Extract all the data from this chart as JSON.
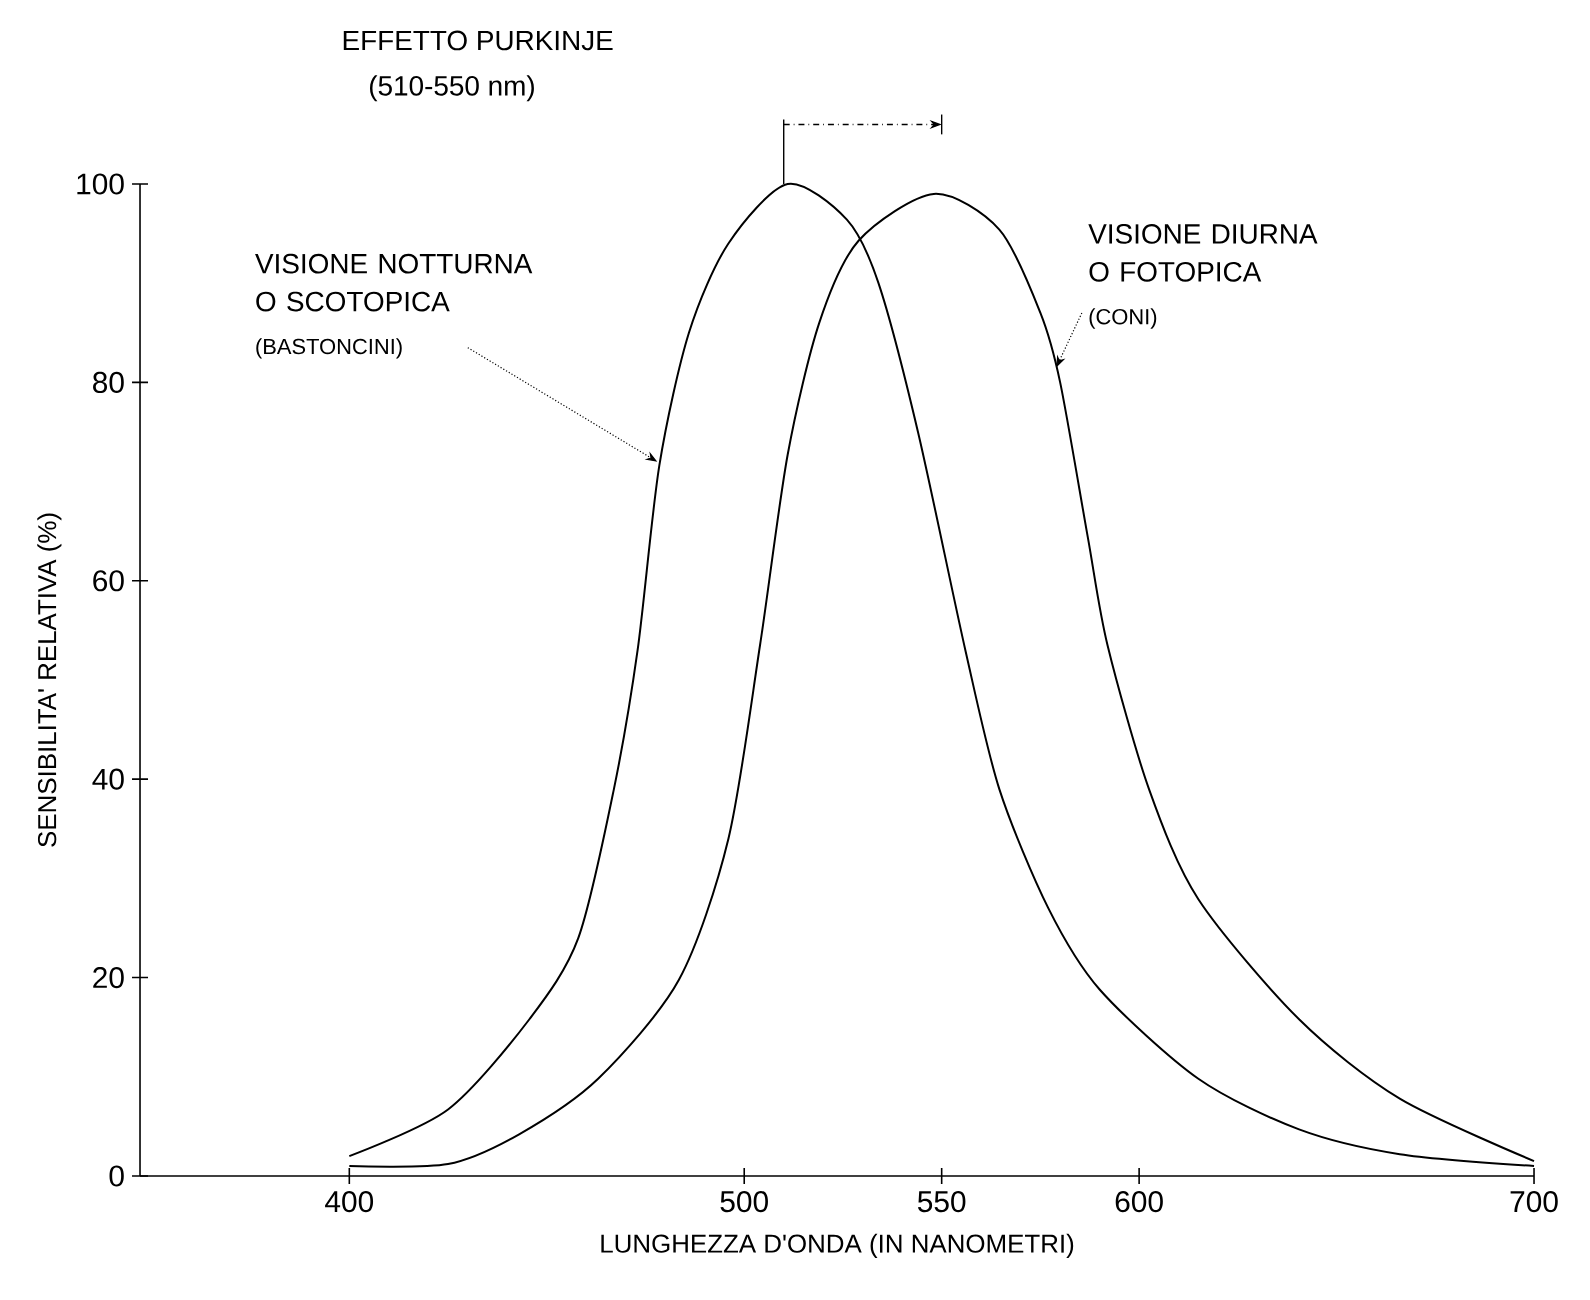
{
  "chart_data": {
    "type": "line",
    "xlabel": "LUNGHEZZA D'ONDA (IN NANOMETRI)",
    "ylabel": "SENSIBILITA' RELATIVA (%)",
    "xlim": [
      347,
      700
    ],
    "ylim": [
      0,
      100
    ],
    "xticks": [
      400,
      500,
      550,
      600,
      700
    ],
    "yticks": [
      0,
      20,
      40,
      60,
      80,
      100
    ],
    "grid": false,
    "marker": "none",
    "line_style": "solid",
    "series": [
      {
        "color": "#000000",
        "x": [
          400,
          425,
          445.6,
          458,
          467,
          473,
          478.5,
          486,
          496,
          511,
          526,
          534,
          544,
          556,
          564.6,
          577,
          590,
          615,
          640.5,
          666,
          700
        ],
        "values": [
          2,
          6.7,
          15.8,
          24,
          39,
          53,
          71.6,
          85,
          94,
          100,
          96.4,
          90,
          75,
          53,
          39,
          27,
          18.8,
          9.8,
          4.7,
          2.2,
          1
        ]
      },
      {
        "color": "#000000",
        "x": [
          400,
          425,
          443,
          463,
          483.5,
          496,
          504,
          511,
          519,
          529,
          548,
          564.6,
          575,
          580,
          587,
          592,
          602.5,
          615,
          640.5,
          666,
          700
        ],
        "values": [
          1,
          1.2,
          4.2,
          9.8,
          19.8,
          34,
          53.5,
          72.7,
          86,
          94.3,
          99,
          95.4,
          87,
          80,
          64.4,
          53.5,
          39,
          27.9,
          15.8,
          7.8,
          1.5
        ]
      }
    ],
    "annotations": [
      "EFFETTO PURKINJE",
      "(510-550 nm)",
      {
        "text": "VISIONE NOTTURNA O SCOTOPICA",
        "x": 478,
        "y": 72
      },
      "(BASTONCINI)",
      {
        "text": "VISIONE DIURNA O FOTOPICA",
        "x": 579,
        "y": 81.5
      },
      "(CONI)"
    ]
  }
}
